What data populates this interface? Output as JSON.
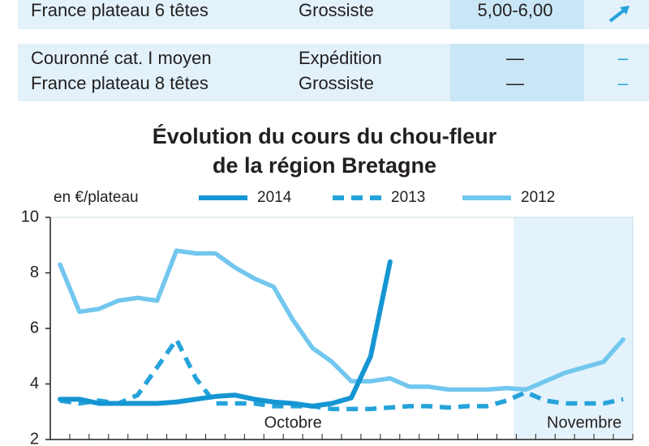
{
  "table": {
    "rows": [
      [
        "France plateau 6 têtes",
        "Grossiste",
        "5,00-6,00"
      ],
      [
        "Couronné cat. I moyen",
        "Expédition",
        "—",
        "–"
      ],
      [
        "France plateau 8 têtes",
        "Grossiste",
        "—",
        "–"
      ]
    ]
  },
  "chart_data": {
    "type": "line",
    "title": [
      "Évolution du cours du chou-fleur",
      "de la région Bretagne"
    ],
    "y_label": "en €/plateau",
    "categories": [
      null,
      null,
      null,
      null,
      null,
      null,
      null,
      null,
      null,
      null,
      null,
      null,
      "Octobre",
      null,
      null,
      null,
      null,
      null,
      null,
      null,
      null,
      null,
      null,
      null,
      null,
      null,
      null,
      "Novembre",
      null,
      null
    ],
    "series": [
      {
        "name": "2014",
        "color": "#1596d3",
        "dashed": false,
        "values": [
          3.45,
          3.45,
          3.3,
          3.3,
          3.3,
          3.3,
          3.35,
          3.45,
          3.55,
          3.6,
          3.45,
          3.35,
          3.3,
          3.2,
          3.3,
          3.5,
          5.0,
          8.4,
          null,
          null,
          null,
          null,
          null,
          null,
          null,
          null,
          null,
          null,
          null,
          null
        ]
      },
      {
        "name": "2013",
        "color": "#25a3da",
        "dashed": true,
        "values": [
          3.4,
          3.3,
          3.4,
          3.3,
          3.6,
          4.6,
          5.6,
          4.2,
          3.3,
          3.3,
          3.3,
          3.2,
          3.2,
          3.2,
          3.1,
          3.1,
          3.1,
          3.15,
          3.2,
          3.2,
          3.15,
          3.2,
          3.2,
          3.4,
          3.7,
          3.4,
          3.3,
          3.3,
          3.3,
          3.45
        ]
      },
      {
        "name": "2012",
        "color": "#72c7ee",
        "dashed": false,
        "values": [
          8.3,
          6.6,
          6.7,
          7.0,
          7.1,
          7.0,
          8.8,
          8.7,
          8.7,
          8.2,
          7.8,
          7.5,
          6.3,
          5.3,
          4.8,
          4.1,
          4.1,
          4.2,
          3.9,
          3.9,
          3.8,
          3.8,
          3.8,
          3.85,
          3.8,
          4.1,
          4.4,
          4.6,
          4.8,
          5.6
        ]
      }
    ],
    "ylim": [
      2,
      10
    ],
    "yticks": [
      2,
      4,
      6,
      8,
      10
    ]
  }
}
